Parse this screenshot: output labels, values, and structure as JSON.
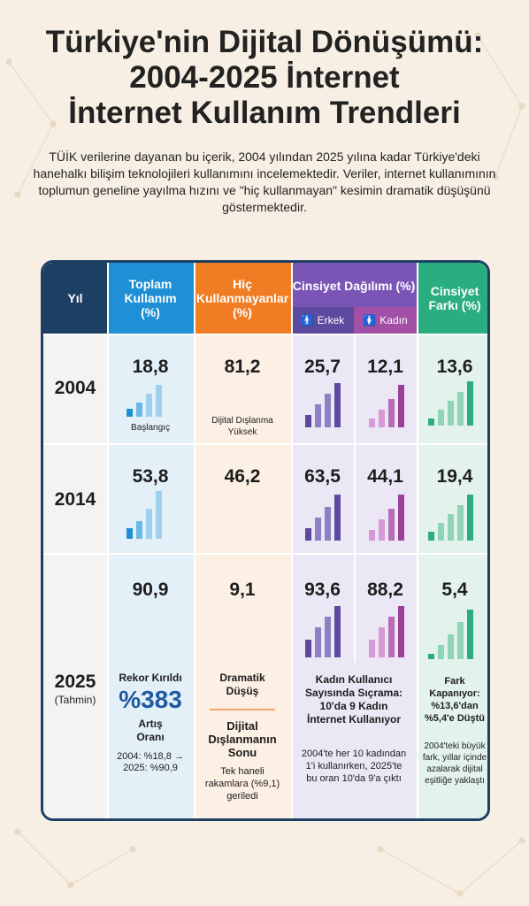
{
  "title": {
    "line1": "Türkiye'nin Dijital Dönüşümü:",
    "line2": "2004-2025 İnternet",
    "line3": "İnternet Kullanım Trendleri"
  },
  "intro": "TÜİK verilerine dayanan bu içerik, 2004 yılından 2025 yılına kadar Türkiye'deki hanehalkı bilişim teknolojileri kullanımını incelemektedir. Veriler, internet kullanımının toplumun geneline yayılma hızını ve \"hiç kullanmayan\" kesimin dramatik düşüşünü göstermektedir.",
  "headers": {
    "year": "Yıl",
    "total": "Toplam Kullanım (%)",
    "never": "Hiç Kullanmayanlar (%)",
    "gender": "Cinsiyet Dağılımı (%)",
    "male": "Erkek",
    "female": "Kadın",
    "gap": "Cinsiyet Farkı (%)"
  },
  "rows": [
    {
      "year": "2004",
      "total": "18,8",
      "never": "81,2",
      "male": "25,7",
      "female": "12,1",
      "gap": "13,6"
    },
    {
      "year": "2014",
      "total": "53,8",
      "never": "46,2",
      "male": "63,5",
      "female": "44,1",
      "gap": "19,4"
    },
    {
      "year": "2025",
      "year_note": "(Tahmin)",
      "total": "90,9",
      "never": "9,1",
      "male": "93,6",
      "female": "88,2",
      "gap": "5,4"
    }
  ],
  "notes": {
    "total_2004": "Başlangıç",
    "never_2004": "Dijital Dışlanma Yüksek",
    "total_2025_head": "Rekor Kırıldı",
    "total_2025_big": "%383",
    "total_2025_sub": "Artış Oranı",
    "total_2025_detail": "2004: %18,8 → 2025: %90,9",
    "never_2025_head": "Dramatik Düşüş",
    "never_2025_sub": "Dijital Dışlanmanın Sonu",
    "never_2025_detail": "Tek haneli rakamlara (%9,1) geriledi",
    "gender_2025_head": "Kadın Kullanıcı Sayısında Sıçrama: 10'da 9 Kadın İnternet Kullanıyor",
    "gender_2025_detail": "2004'te her 10 kadından 1'i kullanırken, 2025'te bu oran 10'da 9'a çıktı",
    "gap_2025_head": "Fark Kapanıyor: %13,6'dan %5,4'e Düştü",
    "gap_2025_detail": "2004'teki büyük fark, yıllar içinde azalarak dijital eşitliğe yaklaştı"
  },
  "colors": {
    "navy": "#1e3f64",
    "blue": "#1f8fd6",
    "orange": "#f07d23",
    "purple": "#7b55b6",
    "green": "#2bae7f",
    "blue_bg": "#e4f0f8",
    "orange_bg": "#fcefe3",
    "purple_bg": "#ebe7f4",
    "green_bg": "#e3f3ec"
  }
}
